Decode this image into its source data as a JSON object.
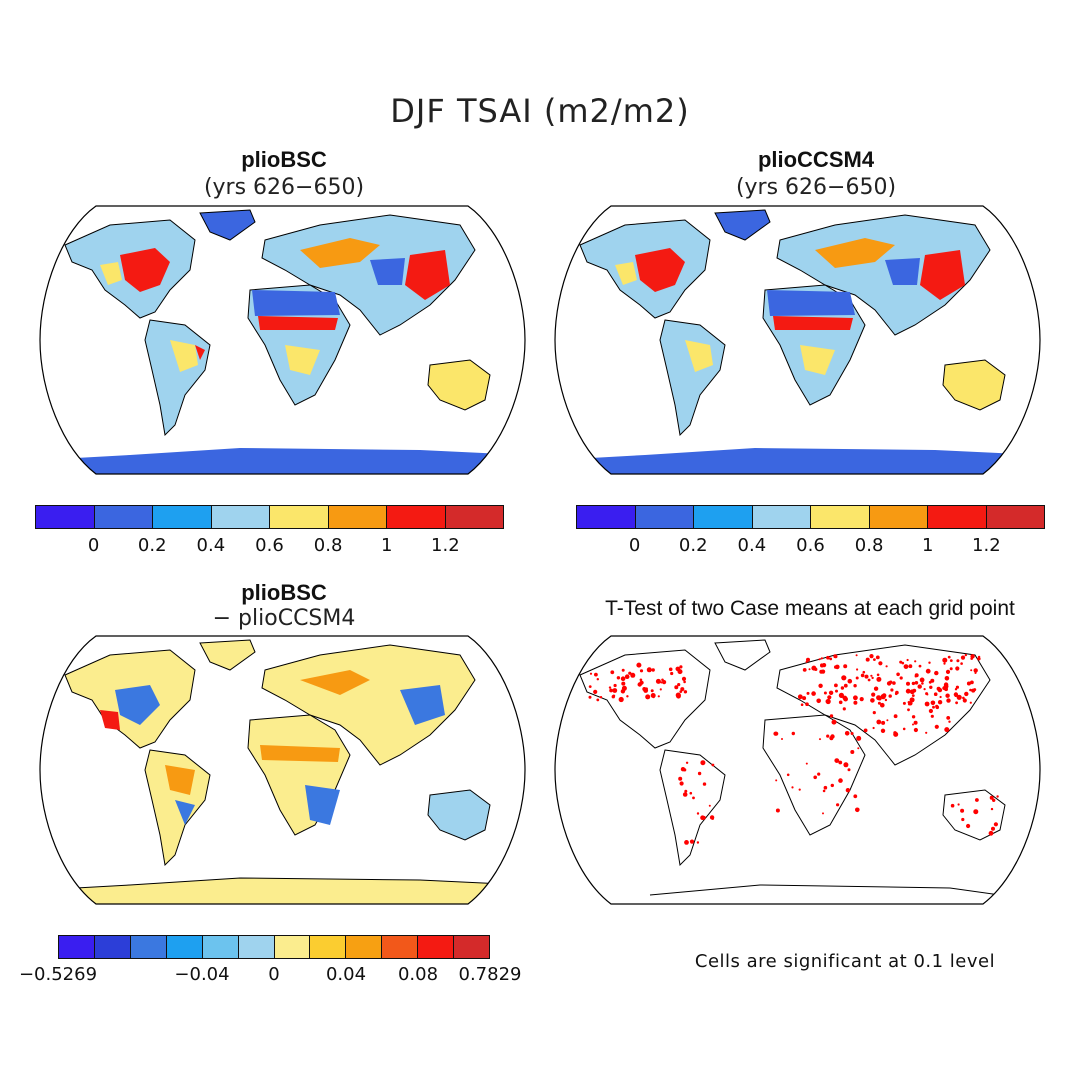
{
  "figure": {
    "title": "DJF TSAI (m2/m2)"
  },
  "panels": [
    {
      "id": "tl",
      "title": "plioBSC",
      "subtitle": "(yrs 626−650)"
    },
    {
      "id": "tr",
      "title": "plioCCSM4",
      "subtitle": "(yrs 626−650)"
    },
    {
      "id": "bl",
      "title": "plioBSC",
      "subtitle": "− plioCCSM4"
    },
    {
      "id": "br",
      "title": "T-Test of two Case means at each grid point"
    }
  ],
  "colorbars": {
    "abs": {
      "colors": [
        "#3a1ef0",
        "#3b66e0",
        "#1ea0f0",
        "#9fd3ee",
        "#fbe66a",
        "#f79a12",
        "#f41a12",
        "#d42a2a"
      ],
      "ticks": [
        "0",
        "0.2",
        "0.4",
        "0.6",
        "0.8",
        "1",
        "1.2"
      ]
    },
    "diff": {
      "colors": [
        "#3a1ef0",
        "#2c3ed8",
        "#3b78e0",
        "#1ea0f0",
        "#6cc3ee",
        "#9fd3ee",
        "#fbed8e",
        "#fbcd30",
        "#f7a012",
        "#f2581a",
        "#f41a12",
        "#d42a2a"
      ],
      "ticks": [
        "−0.5269",
        "−0.04",
        "0",
        "0.04",
        "0.08",
        "0.7829"
      ]
    }
  },
  "note": "Cells are significant at 0.1 level",
  "map_colors": {
    "land_abs_base": "#9fd3ee",
    "land_diff_base": "#fbed8e",
    "antarctica_abs": "#3b66e0",
    "antarctica_diff": "#fbed8e",
    "significance_dots": "#ff0000"
  }
}
